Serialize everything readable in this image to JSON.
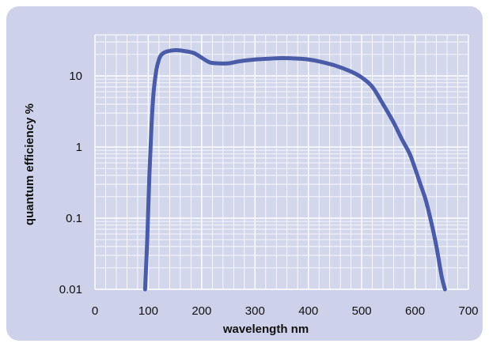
{
  "chart_data": {
    "type": "line",
    "xlabel": "wavelength  nm",
    "ylabel": "quantum efficiency %",
    "xlim": [
      0,
      700
    ],
    "ylim": [
      0.01,
      50
    ],
    "y_scale": "log",
    "grid": true,
    "x_ticks": [
      "0",
      "100",
      "200",
      "300",
      "400",
      "500",
      "600",
      "700"
    ],
    "y_ticks": [
      "0.01",
      "0.1",
      "1",
      "10"
    ],
    "series": [
      {
        "color": "#4A5BA8",
        "x": [
          94,
          98,
          102,
          106,
          110,
          115,
          120,
          125,
          135,
          150,
          165,
          185,
          200,
          215,
          230,
          250,
          270,
          300,
          330,
          350,
          380,
          400,
          420,
          450,
          480,
          500,
          520,
          540,
          560,
          575,
          590,
          600,
          610,
          620,
          630,
          640,
          650,
          656
        ],
        "y": [
          0.01,
          0.05,
          0.4,
          2.0,
          6.0,
          12.0,
          17.0,
          20.0,
          22.0,
          23.0,
          22.5,
          21.0,
          18.0,
          15.5,
          15.0,
          15.0,
          16.0,
          17.0,
          17.5,
          17.8,
          17.5,
          17.0,
          16.0,
          14.0,
          11.5,
          9.5,
          7.0,
          4.0,
          2.2,
          1.3,
          0.8,
          0.5,
          0.3,
          0.18,
          0.09,
          0.04,
          0.015,
          0.01
        ]
      }
    ]
  }
}
